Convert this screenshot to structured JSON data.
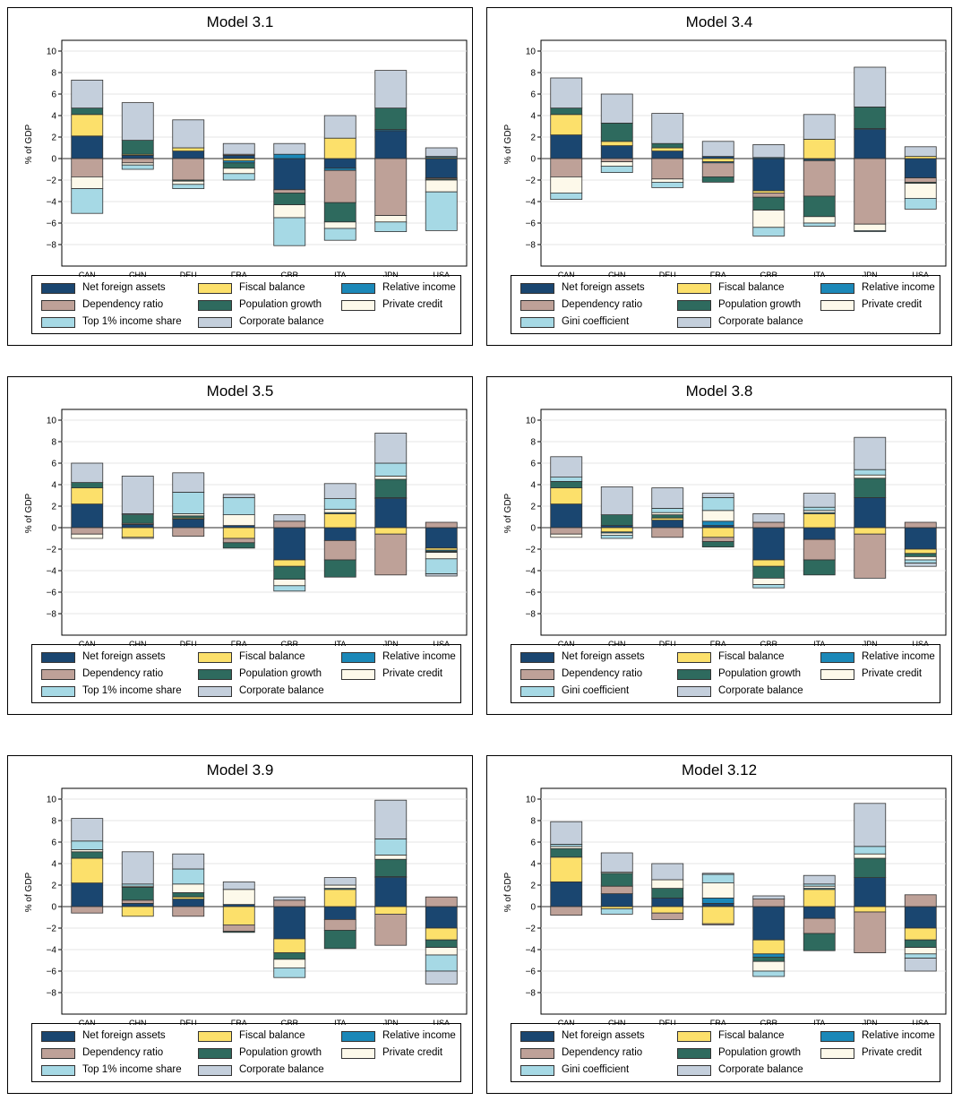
{
  "categories": [
    "CAN",
    "CHN",
    "DEU",
    "FRA",
    "GBR",
    "ITA",
    "JPN",
    "USA"
  ],
  "ylabel": "% of GDP",
  "yticks": [
    -8,
    -6,
    -4,
    -2,
    0,
    2,
    4,
    6,
    8,
    10
  ],
  "colors": {
    "nfa": "#1a4670",
    "fiscal": "#fce06b",
    "relinc": "#1b88b8",
    "dep": "#bea198",
    "pop": "#2e6a5e",
    "credit": "#fdf9ea",
    "ineq": "#a6d9e5",
    "corp": "#c4cfdc"
  },
  "legend_labels": {
    "nfa": "Net foreign assets",
    "fiscal": "Fiscal balance",
    "relinc": "Relative income",
    "dep": "Dependency ratio",
    "pop": "Population growth",
    "credit": "Private credit",
    "corp": "Corporate balance",
    "top1": "Top 1% income share",
    "gini": "Gini coefficient"
  },
  "chart_data": [
    {
      "type": "bar",
      "title": "Model 3.1",
      "ineq_label": "Top 1% income share",
      "ylim": [
        -10,
        11
      ],
      "series": [
        {
          "key": "nfa",
          "values": [
            2.1,
            0.3,
            0.7,
            0.3,
            -2.9,
            -0.9,
            2.6,
            -1.8
          ]
        },
        {
          "key": "fiscal",
          "values": [
            2.0,
            0.1,
            0.3,
            -0.2,
            0,
            1.9,
            0,
            0.1
          ]
        },
        {
          "key": "relinc",
          "values": [
            0,
            0,
            0,
            -0.2,
            0.4,
            -0.2,
            0.1,
            0.1
          ]
        },
        {
          "key": "dep",
          "values": [
            -1.7,
            -0.4,
            -2.0,
            0.1,
            -0.3,
            -3.0,
            -5.3,
            -0.1
          ]
        },
        {
          "key": "pop",
          "values": [
            0.6,
            1.3,
            -0.1,
            -0.5,
            -1.1,
            -1.8,
            2.0,
            -0.1
          ]
        },
        {
          "key": "credit",
          "values": [
            -1.1,
            -0.2,
            -0.3,
            -0.5,
            -1.2,
            -0.6,
            -0.6,
            -1.1
          ]
        },
        {
          "key": "ineq",
          "values": [
            -2.3,
            -0.4,
            -0.4,
            -0.6,
            -2.6,
            -1.1,
            -0.9,
            -3.6
          ]
        },
        {
          "key": "corp",
          "values": [
            2.6,
            3.5,
            2.6,
            1.0,
            1.0,
            2.1,
            3.5,
            0.8
          ]
        }
      ]
    },
    {
      "type": "bar",
      "title": "Model 3.4",
      "ineq_label": "Gini coefficient",
      "ylim": [
        -10,
        11
      ],
      "series": [
        {
          "key": "nfa",
          "values": [
            2.2,
            1.2,
            0.7,
            0.2,
            -3.0,
            -0.1,
            2.7,
            -1.8
          ]
        },
        {
          "key": "fiscal",
          "values": [
            1.9,
            0.4,
            0.3,
            -0.3,
            -0.2,
            1.8,
            0,
            0.2
          ]
        },
        {
          "key": "relinc",
          "values": [
            0,
            0,
            0,
            -0.1,
            0.1,
            -0.1,
            0.1,
            0
          ]
        },
        {
          "key": "dep",
          "values": [
            -1.7,
            -0.3,
            -1.9,
            -1.3,
            -0.4,
            -3.3,
            -6.1,
            -0.4
          ]
        },
        {
          "key": "pop",
          "values": [
            0.6,
            1.7,
            0.4,
            -0.5,
            -1.2,
            -1.9,
            2.0,
            -0.1
          ]
        },
        {
          "key": "credit",
          "values": [
            -1.5,
            -0.4,
            -0.3,
            0,
            -1.6,
            -0.6,
            -0.6,
            -1.4
          ]
        },
        {
          "key": "ineq",
          "values": [
            -0.6,
            -0.6,
            -0.5,
            0,
            -0.8,
            -0.3,
            -0.1,
            -1.0
          ]
        },
        {
          "key": "corp",
          "values": [
            2.8,
            2.7,
            2.8,
            1.4,
            1.2,
            2.3,
            3.7,
            0.9
          ]
        }
      ]
    },
    {
      "type": "bar",
      "title": "Model 3.5",
      "ineq_label": "Top 1% income share",
      "ylim": [
        -10,
        11
      ],
      "series": [
        {
          "key": "nfa",
          "values": [
            2.2,
            0.3,
            0.8,
            0.2,
            -3.0,
            -1.2,
            2.7,
            -1.9
          ]
        },
        {
          "key": "fiscal",
          "values": [
            1.5,
            -0.9,
            0.1,
            -1.0,
            -0.6,
            1.3,
            -0.6,
            -0.2
          ]
        },
        {
          "key": "relinc",
          "values": [
            0,
            0,
            0,
            0,
            0,
            0.1,
            0.1,
            -0.1
          ]
        },
        {
          "key": "dep",
          "values": [
            -0.6,
            0.1,
            -0.8,
            -0.4,
            0.6,
            -1.8,
            -3.8,
            0.5
          ]
        },
        {
          "key": "pop",
          "values": [
            0.5,
            0.8,
            0.2,
            -0.5,
            -1.2,
            -1.6,
            1.7,
            -0.1
          ]
        },
        {
          "key": "credit",
          "values": [
            -0.4,
            -0.1,
            0.2,
            1.0,
            -0.6,
            0.3,
            0.3,
            -0.6
          ]
        },
        {
          "key": "ineq",
          "values": [
            0,
            0.1,
            2.0,
            1.6,
            -0.5,
            1.0,
            1.2,
            -1.4
          ]
        },
        {
          "key": "corp",
          "values": [
            1.8,
            3.5,
            1.8,
            0.3,
            0.6,
            1.4,
            2.8,
            -0.2
          ]
        }
      ]
    },
    {
      "type": "bar",
      "title": "Model 3.8",
      "ineq_label": "Gini coefficient",
      "ylim": [
        -10,
        11
      ],
      "series": [
        {
          "key": "nfa",
          "values": [
            2.2,
            0.2,
            0.7,
            0.2,
            -3.0,
            -1.1,
            2.8,
            -2.0
          ]
        },
        {
          "key": "fiscal",
          "values": [
            1.5,
            -0.4,
            0.2,
            -0.9,
            -0.6,
            1.3,
            -0.6,
            -0.4
          ]
        },
        {
          "key": "relinc",
          "values": [
            0,
            -0.1,
            0,
            0.4,
            0,
            0.1,
            0,
            0
          ]
        },
        {
          "key": "dep",
          "values": [
            -0.6,
            0,
            -0.9,
            -0.4,
            0.5,
            -1.9,
            -4.1,
            0.5
          ]
        },
        {
          "key": "pop",
          "values": [
            0.6,
            1.0,
            0.3,
            -0.5,
            -1.1,
            -1.4,
            1.8,
            -0.3
          ]
        },
        {
          "key": "credit",
          "values": [
            -0.3,
            -0.2,
            0.2,
            1.0,
            -0.6,
            0.2,
            0.3,
            -0.3
          ]
        },
        {
          "key": "ineq",
          "values": [
            0.4,
            -0.3,
            0.4,
            1.2,
            -0.3,
            0.3,
            0.5,
            -0.3
          ]
        },
        {
          "key": "corp",
          "values": [
            1.9,
            2.6,
            1.9,
            0.4,
            0.8,
            1.3,
            3.0,
            -0.3
          ]
        }
      ]
    },
    {
      "type": "bar",
      "title": "Model 3.9",
      "ineq_label": "Top 1% income share",
      "ylim": [
        -10,
        11
      ],
      "series": [
        {
          "key": "nfa",
          "values": [
            2.2,
            0.3,
            0.7,
            0.2,
            -3.0,
            -1.2,
            2.7,
            -2.0
          ]
        },
        {
          "key": "fiscal",
          "values": [
            2.3,
            -0.9,
            0.2,
            -1.7,
            -1.3,
            1.6,
            -0.7,
            -1.1
          ]
        },
        {
          "key": "relinc",
          "values": [
            0,
            0,
            0,
            0,
            0,
            0.1,
            0.1,
            0
          ]
        },
        {
          "key": "dep",
          "values": [
            -0.6,
            0.3,
            -0.9,
            -0.6,
            0.6,
            -1.0,
            -2.9,
            0.9
          ]
        },
        {
          "key": "pop",
          "values": [
            0.6,
            1.2,
            0.4,
            -0.1,
            -0.6,
            -1.7,
            1.6,
            -0.7
          ]
        },
        {
          "key": "credit",
          "values": [
            0.2,
            0.1,
            0.8,
            1.4,
            -0.8,
            0.3,
            0.4,
            -0.7
          ]
        },
        {
          "key": "ineq",
          "values": [
            0.8,
            0.2,
            1.4,
            0,
            -0.9,
            0,
            1.5,
            -1.5
          ]
        },
        {
          "key": "corp",
          "values": [
            2.1,
            3.0,
            1.4,
            0.7,
            0.3,
            0.7,
            3.6,
            -1.2
          ]
        }
      ]
    },
    {
      "type": "bar",
      "title": "Model 3.12",
      "ineq_label": "Gini coefficient",
      "ylim": [
        -10,
        11
      ],
      "series": [
        {
          "key": "nfa",
          "values": [
            2.3,
            1.2,
            0.8,
            0.3,
            -3.1,
            -1.1,
            2.7,
            -2.0
          ]
        },
        {
          "key": "fiscal",
          "values": [
            2.3,
            -0.2,
            -0.6,
            -1.6,
            -1.3,
            1.6,
            -0.5,
            -1.1
          ]
        },
        {
          "key": "relinc",
          "values": [
            0,
            0,
            0,
            0.5,
            -0.3,
            0.1,
            0,
            0
          ]
        },
        {
          "key": "dep",
          "values": [
            -0.8,
            0.7,
            -0.6,
            -0.1,
            0.7,
            -1.4,
            -3.8,
            1.1
          ]
        },
        {
          "key": "pop",
          "values": [
            0.8,
            1.2,
            0.9,
            0,
            -0.4,
            -1.6,
            1.8,
            -0.7
          ]
        },
        {
          "key": "credit",
          "values": [
            0.2,
            0.1,
            0.8,
            1.4,
            -0.9,
            0.2,
            0.4,
            -0.6
          ]
        },
        {
          "key": "ineq",
          "values": [
            0.2,
            -0.5,
            0,
            0.8,
            -0.5,
            0.2,
            0.7,
            -0.4
          ]
        },
        {
          "key": "corp",
          "values": [
            2.1,
            1.8,
            1.5,
            0.1,
            0.3,
            0.8,
            4.0,
            -1.2
          ]
        }
      ]
    }
  ]
}
